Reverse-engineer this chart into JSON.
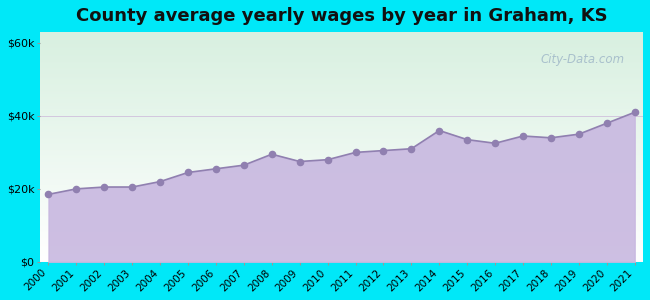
{
  "title": "County average yearly wages by year in Graham, KS",
  "years": [
    2000,
    2001,
    2002,
    2003,
    2004,
    2005,
    2006,
    2007,
    2008,
    2009,
    2010,
    2011,
    2012,
    2013,
    2014,
    2015,
    2016,
    2017,
    2018,
    2019,
    2020,
    2021
  ],
  "wages": [
    18500,
    20000,
    20500,
    20500,
    22000,
    24500,
    25500,
    26500,
    29500,
    27500,
    28000,
    30000,
    30500,
    31000,
    36000,
    33500,
    32500,
    34500,
    34000,
    35000,
    38000,
    41000
  ],
  "yticks": [
    0,
    20000,
    40000,
    60000
  ],
  "ytick_labels": [
    "$0",
    "$20k",
    "$40k",
    "$60k"
  ],
  "ylim": [
    0,
    63000
  ],
  "fill_color": "#c8b8e0",
  "marker_color": "#9080b0",
  "bg_outer": "#00e8f8",
  "bg_plot_top_color": "#d8f0e0",
  "bg_plot_bottom_color": "#ffffff",
  "title_fontsize": 13,
  "watermark": "City-Data.com",
  "watermark_color": "#a0b8c8",
  "grid_color": "#d0c0dc",
  "tick_fontsize": 8,
  "marker_size": 20
}
